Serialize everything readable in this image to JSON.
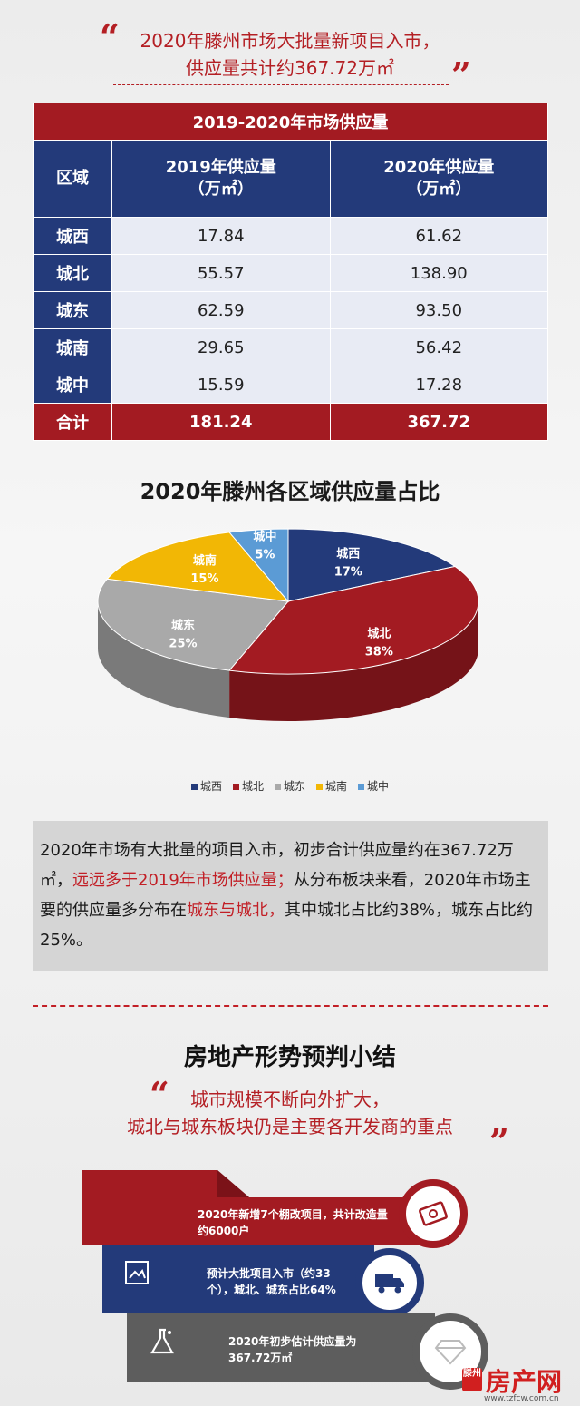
{
  "headline": {
    "line1": "2020年滕州市场大批量新项目入市，",
    "line2": "供应量共计约367.72万㎡"
  },
  "table": {
    "title": "2019-2020年市场供应量",
    "col_region": "区域",
    "col_2019": "2019年供应量",
    "col_2020": "2020年供应量",
    "unit": "（万㎡）",
    "rows": [
      {
        "region": "城西",
        "v2019": "17.84",
        "v2020": "61.62"
      },
      {
        "region": "城北",
        "v2019": "55.57",
        "v2020": "138.90"
      },
      {
        "region": "城东",
        "v2019": "62.59",
        "v2020": "93.50"
      },
      {
        "region": "城南",
        "v2019": "29.65",
        "v2020": "56.42"
      },
      {
        "region": "城中",
        "v2019": "15.59",
        "v2020": "17.28"
      }
    ],
    "total": {
      "label": "合计",
      "v2019": "181.24",
      "v2020": "367.72"
    }
  },
  "chart_data": {
    "type": "pie",
    "title": "2020年滕州各区域供应量占比",
    "slices": [
      {
        "name": "城西",
        "percent": 17,
        "color": "#233a7a"
      },
      {
        "name": "城北",
        "percent": 38,
        "color": "#a31b22"
      },
      {
        "name": "城东",
        "percent": 25,
        "color": "#a9a9a9"
      },
      {
        "name": "城南",
        "percent": 15,
        "color": "#f2b705"
      },
      {
        "name": "城中",
        "percent": 5,
        "color": "#5b9bd5"
      }
    ],
    "legend_position": "bottom"
  },
  "paragraph": {
    "p1": "2020年市场有大批量的项目入市，初步合计供应量约在367.72万㎡，",
    "p2": "远远多于2019年市场供应量；",
    "p3": "从分布板块来看，2020年市场主要的供应量多分布在",
    "p4": "城东与城北，",
    "p5": "其中城北占比约38%，城东占比约25%。"
  },
  "section": {
    "title": "房地产形势预判小结",
    "line1": "城市规模不断向外扩大，",
    "line2": "城北与城东板块仍是主要各开发商的重点"
  },
  "cards": [
    {
      "text": "2020年新增7个棚改项目，共计改造量约6000户",
      "icon": "money-icon"
    },
    {
      "text": "预计大批项目入市（约33个），城北、城东占比64%",
      "icon": "truck-icon"
    },
    {
      "text": "2020年初步估计供应量为367.72万㎡",
      "icon": "diamond-icon"
    }
  ],
  "watermark": {
    "brand_main": "房产网",
    "brand_city": "滕州",
    "site": "www.tzfcw.com.cn"
  }
}
